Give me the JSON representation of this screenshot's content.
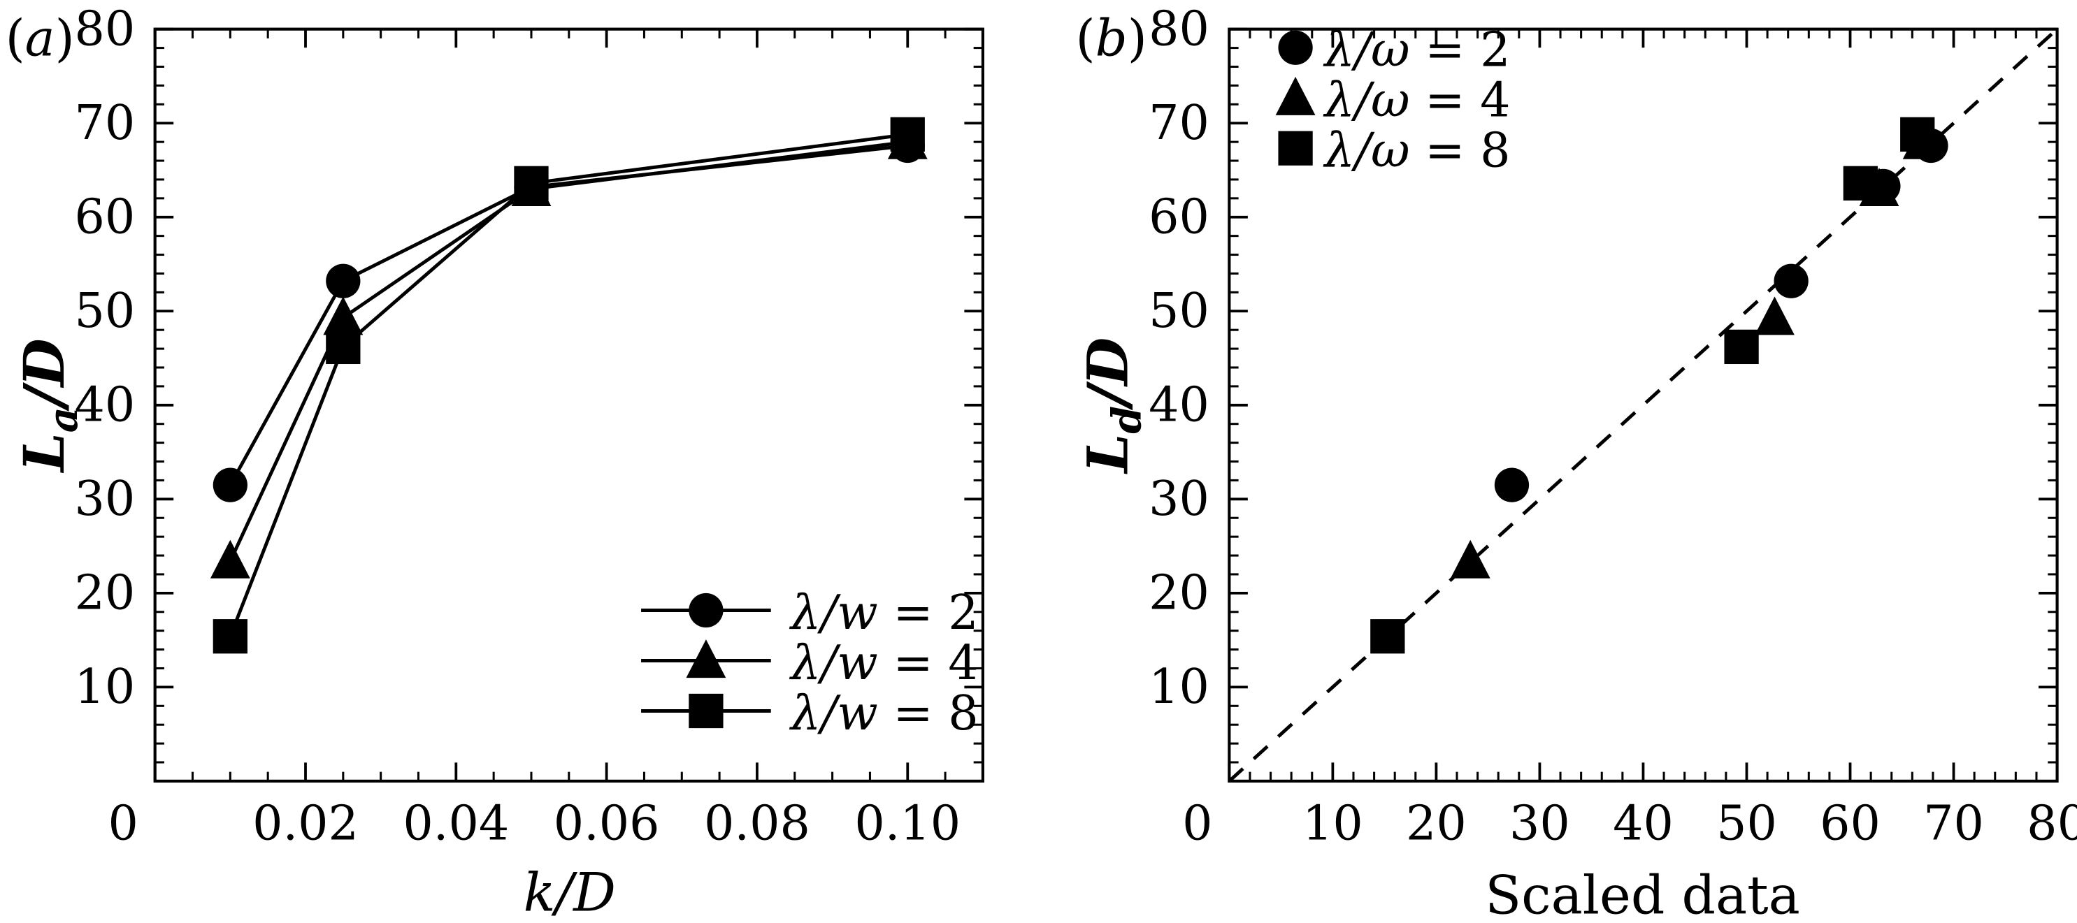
{
  "chart_data": [
    {
      "type": "line",
      "panel_label": "(a)",
      "xlabel": "k/D",
      "ylabel_main": "L",
      "ylabel_sub": "a",
      "ylabel_rest": "/D",
      "xlim": [
        0,
        0.11
      ],
      "ylim": [
        0,
        80
      ],
      "x_ticks": [
        0,
        0.02,
        0.04,
        0.06,
        0.08,
        0.1
      ],
      "x_tick_labels": [
        "0",
        "0.02",
        "0.04",
        "0.06",
        "0.08",
        "0.10"
      ],
      "y_ticks": [
        10,
        20,
        30,
        40,
        50,
        60,
        70,
        80
      ],
      "y_tick_labels": [
        "10",
        "20",
        "30",
        "40",
        "50",
        "60",
        "70",
        "80"
      ],
      "legend_position": "bottom-right",
      "series": [
        {
          "name": "λ/w = 2",
          "marker": "circle",
          "x": [
            0.01,
            0.025,
            0.05,
            0.1
          ],
          "y": [
            31.5,
            53.2,
            63.2,
            67.6
          ]
        },
        {
          "name": "λ/w = 4",
          "marker": "triangle",
          "x": [
            0.01,
            0.025,
            0.05,
            0.1
          ],
          "y": [
            23.4,
            49.3,
            63.0,
            68.0
          ]
        },
        {
          "name": "λ/w = 8",
          "marker": "square",
          "x": [
            0.01,
            0.025,
            0.05,
            0.1
          ],
          "y": [
            15.4,
            46.2,
            63.6,
            68.8
          ]
        }
      ]
    },
    {
      "type": "scatter",
      "panel_label": "(b)",
      "xlabel": "Scaled data",
      "ylabel_main": "L",
      "ylabel_sub": "d",
      "ylabel_rest": "/D",
      "xlim": [
        0,
        80
      ],
      "ylim": [
        0,
        80
      ],
      "x_ticks": [
        0,
        10,
        20,
        30,
        40,
        50,
        60,
        70,
        80
      ],
      "x_tick_labels": [
        "0",
        "10",
        "20",
        "30",
        "40",
        "50",
        "60",
        "70",
        "80"
      ],
      "y_ticks": [
        10,
        20,
        30,
        40,
        50,
        60,
        70,
        80
      ],
      "y_tick_labels": [
        "10",
        "20",
        "30",
        "40",
        "50",
        "60",
        "70",
        "80"
      ],
      "reference_line": "y = x (dashed)",
      "legend_position": "top-left",
      "series": [
        {
          "name": "λ/ω = 2",
          "marker": "circle",
          "x": [
            27.3,
            54.3,
            63.2,
            67.8
          ],
          "y": [
            31.5,
            53.2,
            63.3,
            67.6
          ]
        },
        {
          "name": "λ/ω = 4",
          "marker": "triangle",
          "x": [
            23.3,
            52.7,
            62.8,
            67.0
          ],
          "y": [
            23.4,
            49.3,
            63.0,
            68.0
          ]
        },
        {
          "name": "λ/ω = 8",
          "marker": "square",
          "x": [
            15.3,
            49.5,
            61.0,
            66.5
          ],
          "y": [
            15.4,
            46.2,
            63.6,
            68.8
          ]
        }
      ]
    }
  ]
}
